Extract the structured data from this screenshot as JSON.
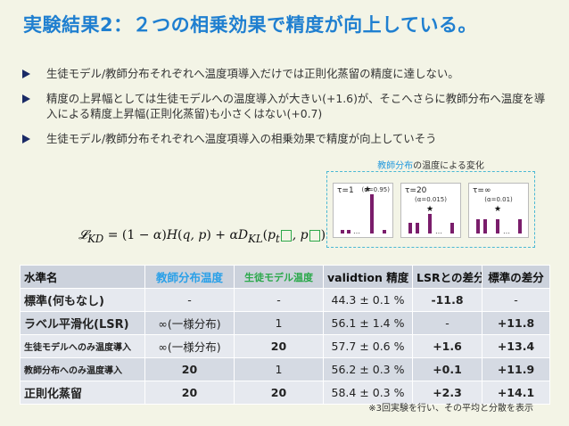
{
  "title": "実験結果2：２つの相乗効果で精度が向上している。",
  "bullets": [
    "生徒モデル/教師分布それぞれへ温度項導入だけでは正則化蒸留の精度に達しない。",
    "精度の上昇幅としては生徒モデルへの温度導入が大きい(+1.6)が、そこへさらに教師分布へ温度を導入による精度上昇幅(正則化蒸留)も小さくはない(+0.7)",
    "生徒モデル/教師分布それぞれへ温度項導入の相乗効果で精度が向上していそう"
  ],
  "inset": {
    "title_highlight": "教師分布",
    "title_rest": "の温度による変化",
    "panels": [
      {
        "tau": "τ=1",
        "alpha": "(α=0.95)"
      },
      {
        "tau": "τ=20",
        "alpha": "(α=0.015)"
      },
      {
        "tau": "τ=∞",
        "alpha": "(α=0.01)"
      }
    ]
  },
  "formula": "𝓛_KD = (1 − α)H(q, p) + αD_KL(p_t/τ, p/τ)",
  "table": {
    "headers": [
      "水準名",
      "教師分布温度",
      "生徒モデル温度",
      "validtion 精度",
      "LSRとの差分",
      "標準の差分"
    ],
    "rows": [
      [
        "標準(何もなし)",
        "-",
        "-",
        "44.3 ± 0.1 %",
        "-11.8",
        "-"
      ],
      [
        "ラベル平滑化(LSR)",
        "∞(一様分布)",
        "1",
        "56.1 ± 1.4 %",
        "-",
        "+11.8"
      ],
      [
        "生徒モデルへのみ温度導入",
        "∞(一様分布)",
        "20",
        "57.7 ± 0.6 %",
        "+1.6",
        "+13.4"
      ],
      [
        "教師分布へのみ温度導入",
        "20",
        "1",
        "56.2 ± 0.3 %",
        "+0.1",
        "+11.9"
      ],
      [
        "正則化蒸留",
        "20",
        "20",
        "58.4 ± 0.3 %",
        "+2.3",
        "+14.1"
      ]
    ]
  },
  "note": "※3回実験を行い、その平均と分散を表示",
  "colors": {
    "title": "#1f7fd0",
    "teacher_header": "#2aa0e8",
    "student_header": "#2aa84a",
    "highlight_red": "#e62020",
    "muted_diff": "#a9b4c8",
    "bar": "#7a1d6b"
  }
}
